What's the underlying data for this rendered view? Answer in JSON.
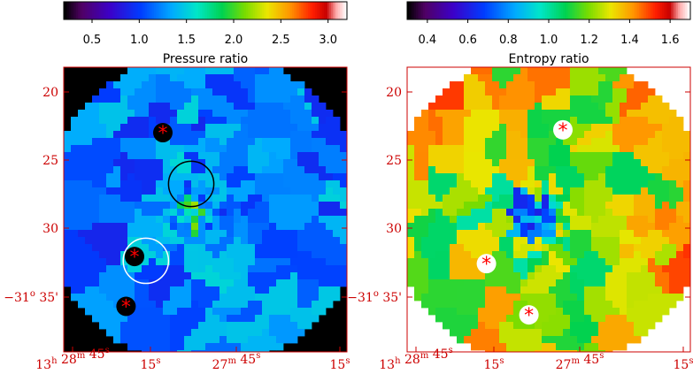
{
  "chart_data": [
    {
      "type": "heatmap",
      "title": "",
      "colorbar": {
        "label": "Pressure ratio",
        "range": [
          0.2,
          3.2
        ],
        "ticks": [
          0.5,
          1.0,
          1.5,
          2.0,
          2.5,
          3.0
        ],
        "tick_labels": [
          "0.5",
          "1.0",
          "1.5",
          "2.0",
          "2.5",
          "3.0"
        ],
        "colormap": "rainbow-white"
      },
      "y_ticks": [
        {
          "value": 20,
          "label": "20"
        },
        {
          "value": 25,
          "label": "25"
        },
        {
          "value": 30,
          "label": "30"
        },
        {
          "value": 35,
          "label": "35'",
          "prefix": "−31",
          "prefix_sup": "o"
        }
      ],
      "x_ticks": [
        {
          "label": "28",
          "unit": "m",
          "value_s": "45",
          "value_unit": "s",
          "prefix": "13",
          "prefix_sup": "h"
        },
        {
          "label": "15",
          "unit": "s"
        },
        {
          "label": "27",
          "unit": "m",
          "value_s": "45",
          "value_unit": "s"
        },
        {
          "label": "15",
          "unit": "s"
        }
      ],
      "markers": [
        {
          "type": "star",
          "x": 0.35,
          "y": 0.23
        },
        {
          "type": "star",
          "x": 0.25,
          "y": 0.665
        },
        {
          "type": "star",
          "x": 0.22,
          "y": 0.84
        }
      ],
      "circles": [
        {
          "color": "#000000",
          "cx": 0.45,
          "cy": 0.41,
          "r": 0.08
        },
        {
          "color": "#ffffff",
          "cx": 0.29,
          "cy": 0.68,
          "r": 0.08
        }
      ]
    },
    {
      "type": "heatmap",
      "title": "",
      "colorbar": {
        "label": "Entropy ratio",
        "range": [
          0.3,
          1.7
        ],
        "ticks": [
          0.4,
          0.6,
          0.8,
          1.0,
          1.2,
          1.4,
          1.6
        ],
        "tick_labels": [
          "0.4",
          "0.6",
          "0.8",
          "1.0",
          "1.2",
          "1.4",
          "1.6"
        ],
        "colormap": "rainbow-white"
      },
      "y_ticks": [
        {
          "value": 20,
          "label": "20"
        },
        {
          "value": 25,
          "label": "25"
        },
        {
          "value": 30,
          "label": "30"
        },
        {
          "value": 35,
          "label": "35'",
          "prefix": "−31",
          "prefix_sup": "o"
        }
      ],
      "x_ticks": [
        {
          "label": "28",
          "unit": "m",
          "value_s": "45",
          "value_unit": "s",
          "prefix": "13",
          "prefix_sup": "h"
        },
        {
          "label": "15",
          "unit": "s"
        },
        {
          "label": "27",
          "unit": "m",
          "value_s": "45",
          "value_unit": "s"
        },
        {
          "label": "15",
          "unit": "s"
        }
      ],
      "markers": [
        {
          "type": "star",
          "x": 0.55,
          "y": 0.22
        },
        {
          "type": "star",
          "x": 0.28,
          "y": 0.69
        },
        {
          "type": "star",
          "x": 0.43,
          "y": 0.87
        }
      ],
      "circles": []
    }
  ],
  "colors": {
    "frame": "#cc0000",
    "marker": "#ff0000",
    "background": "#ffffff"
  }
}
